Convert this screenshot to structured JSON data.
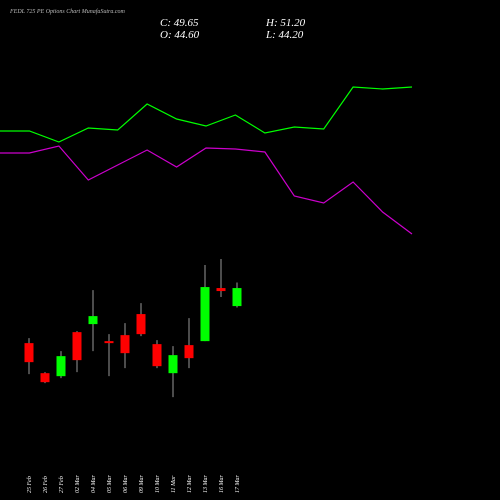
{
  "chart_data": [
    {
      "type": "candlestick",
      "title": "FEDL 725 PE Options  Chart MunafaSutra.com",
      "ohlc_labels": [
        "C: 49.65",
        "H: 51.20",
        "O: 44.60",
        "L: 44.20"
      ],
      "categories": [
        "25 Feb",
        "26 Feb",
        "27 Feb",
        "02 Mar",
        "04 Mar",
        "05 Mar",
        "06 Mar",
        "09 Mar",
        "10 Mar",
        "11 Mar",
        "12 Mar",
        "13 Mar",
        "16 Mar",
        "17 Mar"
      ],
      "open": [
        34.22,
        25.8,
        24.96,
        37.3,
        39.55,
        34.78,
        36.46,
        42.36,
        33.94,
        25.8,
        33.66,
        34.78,
        49.65,
        44.6
      ],
      "high": [
        35.62,
        26.1,
        31.97,
        37.58,
        49.09,
        36.74,
        39.83,
        45.44,
        35.06,
        33.38,
        41.23,
        56.1,
        57.79,
        51.2
      ],
      "low": [
        25.52,
        23.0,
        24.4,
        26.08,
        31.97,
        24.96,
        27.2,
        36.18,
        27.2,
        19.07,
        27.2,
        34.78,
        47.13,
        44.2
      ],
      "close": [
        28.89,
        23.28,
        30.57,
        29.45,
        41.79,
        34.22,
        31.41,
        36.74,
        27.76,
        30.85,
        30.01,
        49.93,
        48.81,
        49.65
      ],
      "ylim": [
        18,
        62
      ],
      "up_color": "#00ff00",
      "down_color": "#ff0000",
      "wick_color": "#999999"
    },
    {
      "type": "line",
      "categories": [
        null,
        null,
        null,
        null,
        null,
        null,
        null,
        null,
        null,
        null,
        null,
        null,
        null,
        null,
        null
      ],
      "series": [
        {
          "color": "#00ff00",
          "values": [
            59.5,
            59.5,
            54,
            61,
            60,
            73,
            65.5,
            62,
            67.5,
            58.5,
            61.5,
            60.5,
            81.5,
            80.5,
            81.5
          ]
        },
        {
          "color": "#cc00cc",
          "values": [
            48.5,
            48.5,
            52,
            35,
            42.5,
            50,
            41.5,
            51,
            50.5,
            49,
            27,
            23.5,
            34,
            19,
            8
          ]
        }
      ],
      "ylim": [
        0,
        100
      ]
    }
  ]
}
